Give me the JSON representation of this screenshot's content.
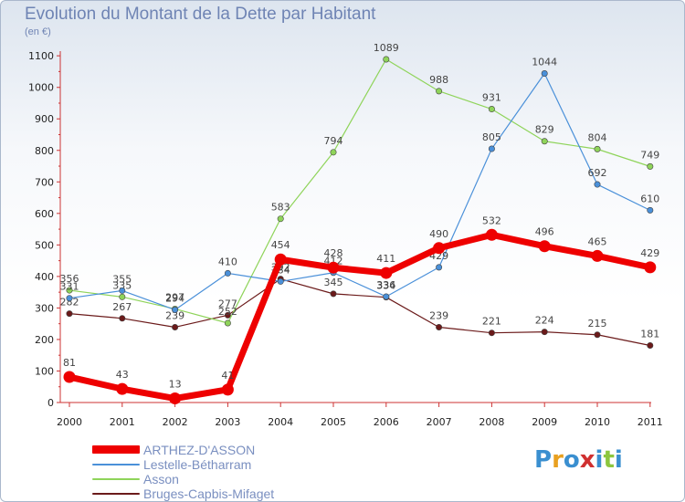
{
  "chart_data": {
    "type": "line",
    "title": "Evolution du Montant de la Dette par Habitant",
    "subtitle": "(en €)",
    "x": [
      "2000",
      "2001",
      "2002",
      "2003",
      "2004",
      "2005",
      "2006",
      "2007",
      "2008",
      "2009",
      "2010",
      "2011"
    ],
    "ylim": [
      0,
      1100
    ],
    "yticks": [
      0,
      100,
      200,
      300,
      400,
      500,
      600,
      700,
      800,
      900,
      1000,
      1100
    ],
    "grid": false,
    "legend_position": "bottom-left",
    "series": [
      {
        "name": "Bruges-Capbis-Mifaget",
        "color": "#6b1a1a",
        "values": [
          282,
          267,
          239,
          277,
          392,
          345,
          334,
          239,
          221,
          224,
          215,
          181
        ]
      },
      {
        "name": "Asson",
        "color": "#8fd45a",
        "values": [
          356,
          335,
          297,
          252,
          583,
          794,
          1089,
          988,
          931,
          829,
          804,
          749
        ]
      },
      {
        "name": "Lestelle-Bétharram",
        "color": "#4a90d9",
        "values": [
          331,
          355,
          294,
          410,
          384,
          412,
          336,
          429,
          805,
          1044,
          692,
          610
        ]
      },
      {
        "name": "ARTHEZ-D'ASSON",
        "color": "#ee0000",
        "values": [
          81,
          43,
          13,
          41,
          454,
          428,
          411,
          490,
          532,
          496,
          465,
          429
        ]
      }
    ]
  },
  "legend": {
    "items": [
      {
        "label": "ARTHEZ-D'ASSON",
        "color": "#ee0000"
      },
      {
        "label": "Lestelle-Bétharram",
        "color": "#4a90d9"
      },
      {
        "label": "Asson",
        "color": "#8fd45a"
      },
      {
        "label": "Bruges-Capbis-Mifaget",
        "color": "#6b1a1a"
      }
    ]
  },
  "logo": {
    "text": "Proxiti"
  }
}
